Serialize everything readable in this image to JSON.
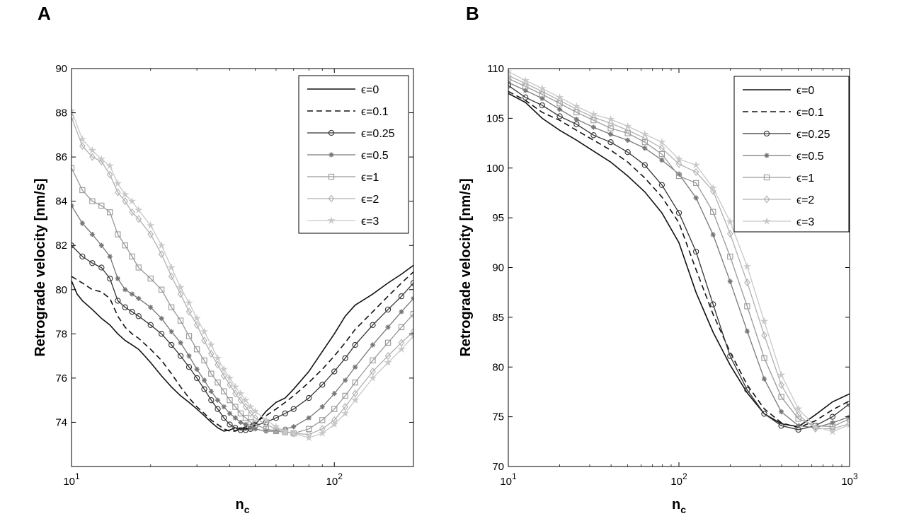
{
  "chart_data": [
    {
      "panel_label": "A",
      "type": "line",
      "xlabel_main": "n",
      "xlabel_sub": "c",
      "ylabel": "Retrograde velocity [nm/s]",
      "x_scale": "log",
      "xlim": [
        10,
        200
      ],
      "ylim": [
        72,
        90
      ],
      "yticks": [
        74,
        76,
        78,
        80,
        82,
        84,
        86,
        88,
        90
      ],
      "xticks": [
        10,
        100
      ],
      "xtick_labels": [
        {
          "base": "10",
          "exp": "1"
        },
        {
          "base": "10",
          "exp": "2"
        }
      ],
      "grid": false,
      "legend_position": "top-right",
      "series": [
        {
          "name": "ϵ=0",
          "color": "#111111",
          "marker": "none",
          "dash": "none",
          "x": [
            10,
            10.5,
            11,
            12,
            13,
            14,
            15,
            16,
            17,
            18,
            19,
            20,
            22,
            24,
            26,
            28,
            30,
            32,
            34,
            36,
            38,
            40,
            42,
            44,
            46,
            48,
            50,
            55,
            60,
            65,
            70,
            80,
            90,
            100,
            110,
            120,
            140,
            160,
            180,
            200
          ],
          "y": [
            80.4,
            79.8,
            79.5,
            79.1,
            78.7,
            78.4,
            78.0,
            77.7,
            77.5,
            77.3,
            77.0,
            76.7,
            76.1,
            75.6,
            75.2,
            74.9,
            74.6,
            74.3,
            74.0,
            73.75,
            73.6,
            73.65,
            73.75,
            73.7,
            73.7,
            73.75,
            73.9,
            74.5,
            74.9,
            75.1,
            75.5,
            76.3,
            77.2,
            78.0,
            78.8,
            79.3,
            79.8,
            80.3,
            80.7,
            81.1
          ]
        },
        {
          "name": "ϵ=0.1",
          "color": "#111111",
          "marker": "none",
          "dash": "8,5",
          "x": [
            10,
            11,
            12,
            13,
            14,
            15,
            16,
            17,
            18,
            20,
            22,
            24,
            26,
            28,
            30,
            32,
            34,
            36,
            38,
            40,
            42,
            44,
            46,
            48,
            50,
            55,
            60,
            65,
            70,
            80,
            90,
            100,
            110,
            120,
            140,
            160,
            180,
            200
          ],
          "y": [
            80.6,
            80.3,
            80.0,
            79.9,
            79.6,
            78.8,
            78.3,
            78.0,
            77.8,
            77.3,
            76.8,
            76.2,
            75.6,
            75.1,
            74.7,
            74.4,
            74.1,
            73.9,
            73.7,
            73.6,
            73.6,
            73.7,
            73.8,
            73.9,
            74.0,
            74.3,
            74.6,
            74.9,
            75.2,
            75.8,
            76.4,
            77.0,
            77.6,
            78.2,
            79.0,
            79.7,
            80.3,
            80.8
          ]
        },
        {
          "name": "ϵ=0.25",
          "color": "#333333",
          "marker": "circle",
          "dash": "none",
          "width": 1.3,
          "x": [
            10,
            11,
            12,
            13,
            14,
            15,
            16,
            17,
            18,
            20,
            22,
            24,
            26,
            28,
            30,
            32,
            34,
            36,
            38,
            40,
            42,
            44,
            46,
            48,
            50,
            55,
            60,
            65,
            70,
            80,
            90,
            100,
            110,
            120,
            140,
            160,
            180,
            200
          ],
          "y": [
            82.0,
            81.5,
            81.2,
            81.0,
            80.5,
            79.5,
            79.2,
            79.0,
            78.8,
            78.4,
            78.0,
            77.5,
            77.0,
            76.5,
            76.0,
            75.5,
            75.0,
            74.6,
            74.2,
            73.9,
            73.75,
            73.65,
            73.65,
            73.7,
            73.85,
            74.0,
            74.2,
            74.4,
            74.6,
            75.1,
            75.7,
            76.3,
            76.9,
            77.5,
            78.4,
            79.1,
            79.7,
            80.3
          ]
        },
        {
          "name": "ϵ=0.5",
          "color": "#777777",
          "marker": "asterisk",
          "dash": "none",
          "width": 1.3,
          "x": [
            10,
            11,
            12,
            13,
            14,
            15,
            16,
            17,
            18,
            20,
            22,
            24,
            26,
            28,
            30,
            32,
            34,
            36,
            38,
            40,
            42,
            44,
            46,
            48,
            50,
            55,
            60,
            65,
            70,
            80,
            90,
            100,
            110,
            120,
            140,
            160,
            180,
            200
          ],
          "y": [
            83.8,
            83.0,
            82.5,
            82.0,
            81.5,
            80.5,
            80.0,
            79.8,
            79.6,
            79.2,
            78.7,
            78.1,
            77.6,
            77.0,
            76.4,
            75.9,
            75.4,
            75.0,
            74.7,
            74.4,
            74.2,
            74.0,
            73.9,
            73.75,
            73.7,
            73.6,
            73.6,
            73.7,
            73.8,
            74.2,
            74.7,
            75.3,
            75.9,
            76.5,
            77.5,
            78.3,
            79.0,
            79.6
          ]
        },
        {
          "name": "ϵ=1",
          "color": "#999999",
          "marker": "square",
          "dash": "none",
          "width": 1.3,
          "x": [
            10,
            11,
            12,
            13,
            14,
            15,
            16,
            17,
            18,
            20,
            22,
            24,
            26,
            28,
            30,
            32,
            34,
            36,
            38,
            40,
            42,
            44,
            46,
            48,
            50,
            55,
            60,
            65,
            70,
            80,
            90,
            100,
            110,
            120,
            140,
            160,
            180,
            200
          ],
          "y": [
            85.5,
            84.5,
            84.0,
            83.8,
            83.5,
            82.5,
            82.0,
            81.5,
            81.0,
            80.5,
            80.0,
            79.2,
            78.6,
            77.9,
            77.3,
            76.8,
            76.2,
            75.8,
            75.4,
            75.0,
            74.7,
            74.4,
            74.2,
            74.0,
            73.9,
            73.7,
            73.6,
            73.55,
            73.5,
            73.7,
            74.1,
            74.6,
            75.2,
            75.8,
            76.8,
            77.6,
            78.3,
            78.9
          ]
        },
        {
          "name": "ϵ=2",
          "color": "#b0b0b0",
          "marker": "diamond",
          "dash": "none",
          "width": 1.3,
          "x": [
            10,
            11,
            12,
            13,
            14,
            15,
            16,
            17,
            18,
            20,
            22,
            24,
            26,
            28,
            30,
            32,
            34,
            36,
            38,
            40,
            42,
            44,
            46,
            48,
            50,
            55,
            60,
            65,
            70,
            80,
            90,
            100,
            110,
            120,
            140,
            160,
            180,
            200
          ],
          "y": [
            87.8,
            86.5,
            86.0,
            85.8,
            85.2,
            84.4,
            84.0,
            83.5,
            83.2,
            82.5,
            81.6,
            80.6,
            79.8,
            79.0,
            78.4,
            77.7,
            77.1,
            76.6,
            76.1,
            75.7,
            75.3,
            75.0,
            74.7,
            74.4,
            74.2,
            73.9,
            73.7,
            73.6,
            73.5,
            73.45,
            73.7,
            74.1,
            74.7,
            75.3,
            76.3,
            77.0,
            77.6,
            78.1
          ]
        },
        {
          "name": "ϵ=3",
          "color": "#c8c8c8",
          "marker": "star",
          "dash": "none",
          "width": 1.3,
          "x": [
            10,
            11,
            12,
            13,
            14,
            15,
            16,
            17,
            18,
            20,
            22,
            24,
            26,
            28,
            30,
            32,
            34,
            36,
            38,
            40,
            42,
            44,
            46,
            48,
            50,
            55,
            60,
            65,
            70,
            80,
            90,
            100,
            110,
            120,
            140,
            160,
            180,
            200
          ],
          "y": [
            88.1,
            86.8,
            86.3,
            85.9,
            85.6,
            84.8,
            84.3,
            84.0,
            83.6,
            82.9,
            82.0,
            81.0,
            80.1,
            79.4,
            78.7,
            78.1,
            77.5,
            76.9,
            76.4,
            76.0,
            75.6,
            75.3,
            75.0,
            74.7,
            74.5,
            74.1,
            73.8,
            73.6,
            73.5,
            73.3,
            73.5,
            73.9,
            74.4,
            75.0,
            76.0,
            76.7,
            77.3,
            77.9
          ]
        }
      ]
    },
    {
      "panel_label": "B",
      "type": "line",
      "xlabel_main": "n",
      "xlabel_sub": "c",
      "ylabel": "Retrograde velocity [nm/s]",
      "x_scale": "log",
      "xlim": [
        10,
        1000
      ],
      "ylim": [
        70,
        110
      ],
      "yticks": [
        70,
        75,
        80,
        85,
        90,
        95,
        100,
        105,
        110
      ],
      "xticks": [
        10,
        100,
        1000
      ],
      "xtick_labels": [
        {
          "base": "10",
          "exp": "1"
        },
        {
          "base": "10",
          "exp": "2"
        },
        {
          "base": "10",
          "exp": "3"
        }
      ],
      "grid": false,
      "legend_position": "top-right",
      "series": [
        {
          "name": "ϵ=0",
          "color": "#111111",
          "marker": "none",
          "dash": "none",
          "x": [
            10,
            12.6,
            15.8,
            20,
            25.1,
            31.6,
            39.8,
            50.1,
            63.1,
            79.4,
            100,
            125.9,
            158.5,
            199.5,
            251.2,
            316.2,
            398.1,
            501.2,
            631,
            794.3,
            1000
          ],
          "y": [
            107.5,
            106.6,
            105.0,
            103.8,
            102.8,
            101.7,
            100.6,
            99.2,
            97.6,
            95.5,
            92.5,
            87.5,
            83.5,
            80.2,
            77.4,
            75.3,
            74.3,
            74.0,
            75.2,
            76.5,
            77.3
          ]
        },
        {
          "name": "ϵ=0.1",
          "color": "#111111",
          "marker": "none",
          "dash": "8,5",
          "x": [
            10,
            12.6,
            15.8,
            20,
            25.1,
            31.6,
            39.8,
            50.1,
            63.1,
            79.4,
            100,
            125.9,
            158.5,
            199.5,
            251.2,
            316.2,
            398.1,
            501.2,
            631,
            794.3,
            1000
          ],
          "y": [
            107.7,
            106.8,
            105.6,
            104.8,
            103.8,
            102.8,
            101.8,
            100.6,
            99.0,
            97.1,
            94.5,
            89.8,
            85.3,
            81.5,
            78.2,
            75.8,
            74.4,
            73.9,
            74.6,
            75.7,
            76.6
          ]
        },
        {
          "name": "ϵ=0.25",
          "color": "#333333",
          "marker": "circle",
          "dash": "none",
          "width": 1.3,
          "x": [
            10,
            12.6,
            15.8,
            20,
            25.1,
            31.6,
            39.8,
            50.1,
            63.1,
            79.4,
            100,
            125.9,
            158.5,
            199.5,
            251.2,
            316.2,
            398.1,
            501.2,
            631,
            794.3,
            1000
          ],
          "y": [
            108.3,
            107.1,
            106.3,
            105.2,
            104.4,
            103.3,
            102.6,
            101.6,
            100.3,
            98.3,
            95.5,
            91.6,
            86.3,
            81.1,
            77.7,
            75.3,
            74.1,
            73.7,
            74.1,
            75.0,
            76.3
          ]
        },
        {
          "name": "ϵ=0.5",
          "color": "#777777",
          "marker": "asterisk",
          "dash": "none",
          "width": 1.3,
          "x": [
            10,
            12.6,
            15.8,
            20,
            25.1,
            31.6,
            39.8,
            50.1,
            63.1,
            79.4,
            100,
            125.9,
            158.5,
            199.5,
            251.2,
            316.2,
            398.1,
            501.2,
            631,
            794.3,
            1000
          ],
          "y": [
            108.6,
            107.8,
            107.0,
            105.9,
            104.9,
            104.1,
            103.4,
            102.8,
            102.0,
            100.8,
            99.4,
            97.0,
            93.3,
            88.6,
            83.6,
            78.8,
            75.5,
            74.1,
            73.9,
            74.4,
            75.0
          ]
        },
        {
          "name": "ϵ=1",
          "color": "#999999",
          "marker": "square",
          "dash": "none",
          "width": 1.3,
          "x": [
            10,
            12.6,
            15.8,
            20,
            25.1,
            31.6,
            39.8,
            50.1,
            63.1,
            79.4,
            100,
            125.9,
            158.5,
            199.5,
            251.2,
            316.2,
            398.1,
            501.2,
            631,
            794.3,
            1000
          ],
          "y": [
            109.0,
            108.2,
            107.4,
            106.5,
            105.6,
            104.8,
            104.0,
            103.5,
            102.6,
            101.4,
            99.2,
            98.5,
            95.6,
            91.1,
            86.1,
            80.9,
            77.0,
            74.8,
            74.1,
            74.0,
            74.8
          ]
        },
        {
          "name": "ϵ=2",
          "color": "#b0b0b0",
          "marker": "diamond",
          "dash": "none",
          "width": 1.3,
          "x": [
            10,
            12.6,
            15.8,
            20,
            25.1,
            31.6,
            39.8,
            50.1,
            63.1,
            79.4,
            100,
            125.9,
            158.5,
            199.5,
            251.2,
            316.2,
            398.1,
            501.2,
            631,
            794.3,
            1000
          ],
          "y": [
            109.3,
            108.5,
            107.7,
            106.8,
            105.9,
            105.1,
            104.5,
            103.8,
            103.0,
            102.0,
            100.4,
            99.6,
            97.7,
            93.4,
            88.5,
            83.2,
            78.2,
            75.2,
            73.8,
            73.8,
            74.3
          ]
        },
        {
          "name": "ϵ=3",
          "color": "#c8c8c8",
          "marker": "star",
          "dash": "none",
          "width": 1.3,
          "x": [
            10,
            12.6,
            15.8,
            20,
            25.1,
            31.6,
            39.8,
            50.1,
            63.1,
            79.4,
            100,
            125.9,
            158.5,
            199.5,
            251.2,
            316.2,
            398.1,
            501.2,
            631,
            794.3,
            1000
          ],
          "y": [
            109.7,
            108.8,
            108.0,
            107.1,
            106.2,
            105.4,
            104.9,
            104.2,
            103.4,
            102.6,
            100.9,
            100.3,
            98.0,
            94.6,
            90.1,
            84.6,
            79.2,
            75.8,
            74.0,
            73.5,
            74.2
          ]
        }
      ]
    }
  ]
}
